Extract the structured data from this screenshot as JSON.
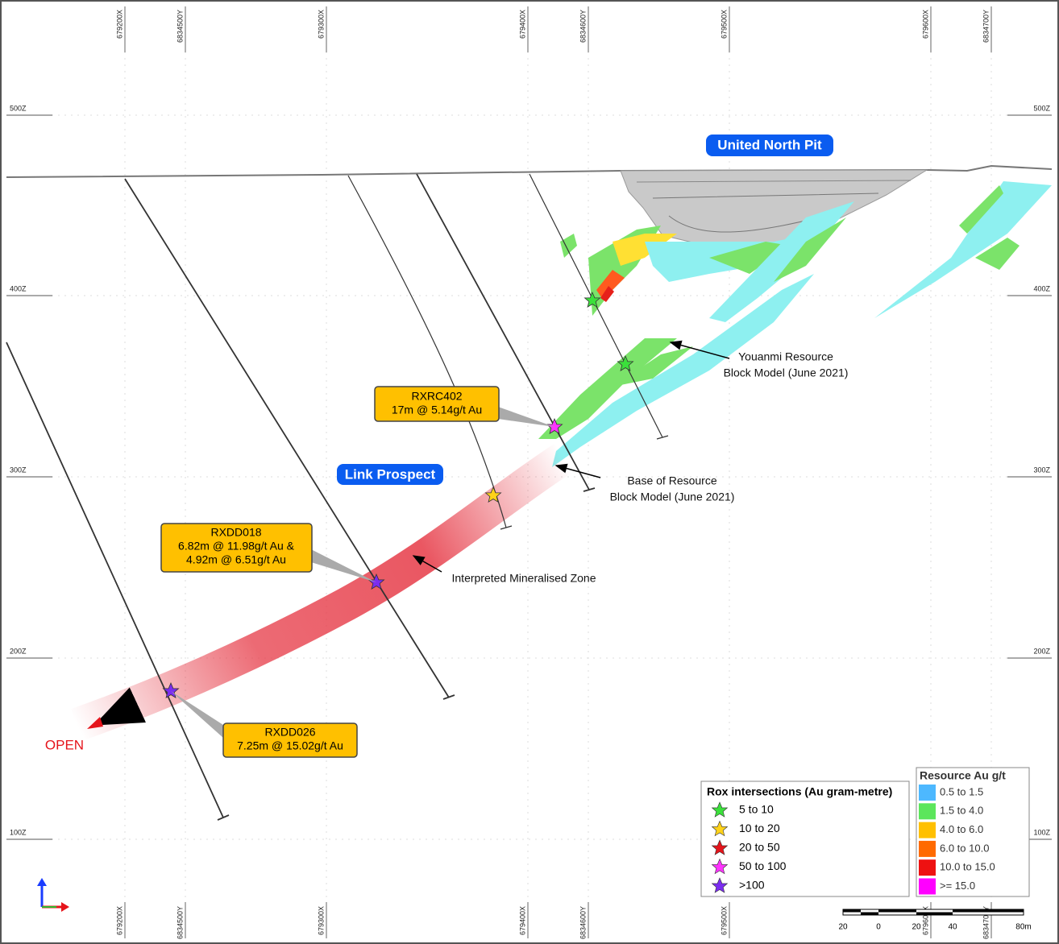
{
  "section": {
    "easting_labels_top": [
      "679200X",
      "6834500Y",
      "679300X",
      "679400X",
      "6834600Y",
      "679500X",
      "679600X",
      "6834700Y"
    ],
    "easting_labels_bottom": [
      "679200X",
      "6834500Y",
      "679300X",
      "679400X",
      "6834600Y",
      "679500X",
      "679600X",
      "6834700Y"
    ],
    "elevation_labels_left": [
      "500Z",
      "400Z",
      "300Z",
      "200Z",
      "100Z"
    ],
    "elevation_labels_right": [
      "500Z",
      "400Z",
      "300Z",
      "200Z",
      "100Z"
    ],
    "pit_label": "United North Pit",
    "prospect_label": "Link Prospect",
    "open_label": "OPEN",
    "callouts": [
      {
        "hole": "RXRC402",
        "lines": [
          "17m @ 5.14g/t Au"
        ]
      },
      {
        "hole": "RXDD018",
        "lines": [
          "6.82m @ 11.98g/t Au &",
          "4.92m @ 6.51g/t Au"
        ]
      },
      {
        "hole": "RXDD026",
        "lines": [
          "7.25m @ 15.02g/t Au"
        ]
      }
    ],
    "annotations": [
      {
        "lines": [
          "Youanmi Resource",
          "Block Model (June 2021)"
        ]
      },
      {
        "lines": [
          "Base of Resource",
          "Block Model (June 2021)"
        ]
      },
      {
        "lines": [
          "Interpreted Mineralised Zone"
        ]
      }
    ]
  },
  "legend_intersections": {
    "title": "Rox intersections (Au gram-metre)",
    "items": [
      "5 to 10",
      "10 to 20",
      "20 to 50",
      "50 to 100",
      ">100"
    ]
  },
  "legend_resource": {
    "title": "Resource Au g/t",
    "items": [
      "0.5 to 1.5",
      "1.5 to 4.0",
      "4.0 to 6.0",
      "6.0 to 10.0",
      "10.0 to 15.0",
      ">= 15.0"
    ]
  },
  "scale_bar": {
    "labels": [
      "20",
      "0",
      "20",
      "40",
      "80m"
    ]
  }
}
